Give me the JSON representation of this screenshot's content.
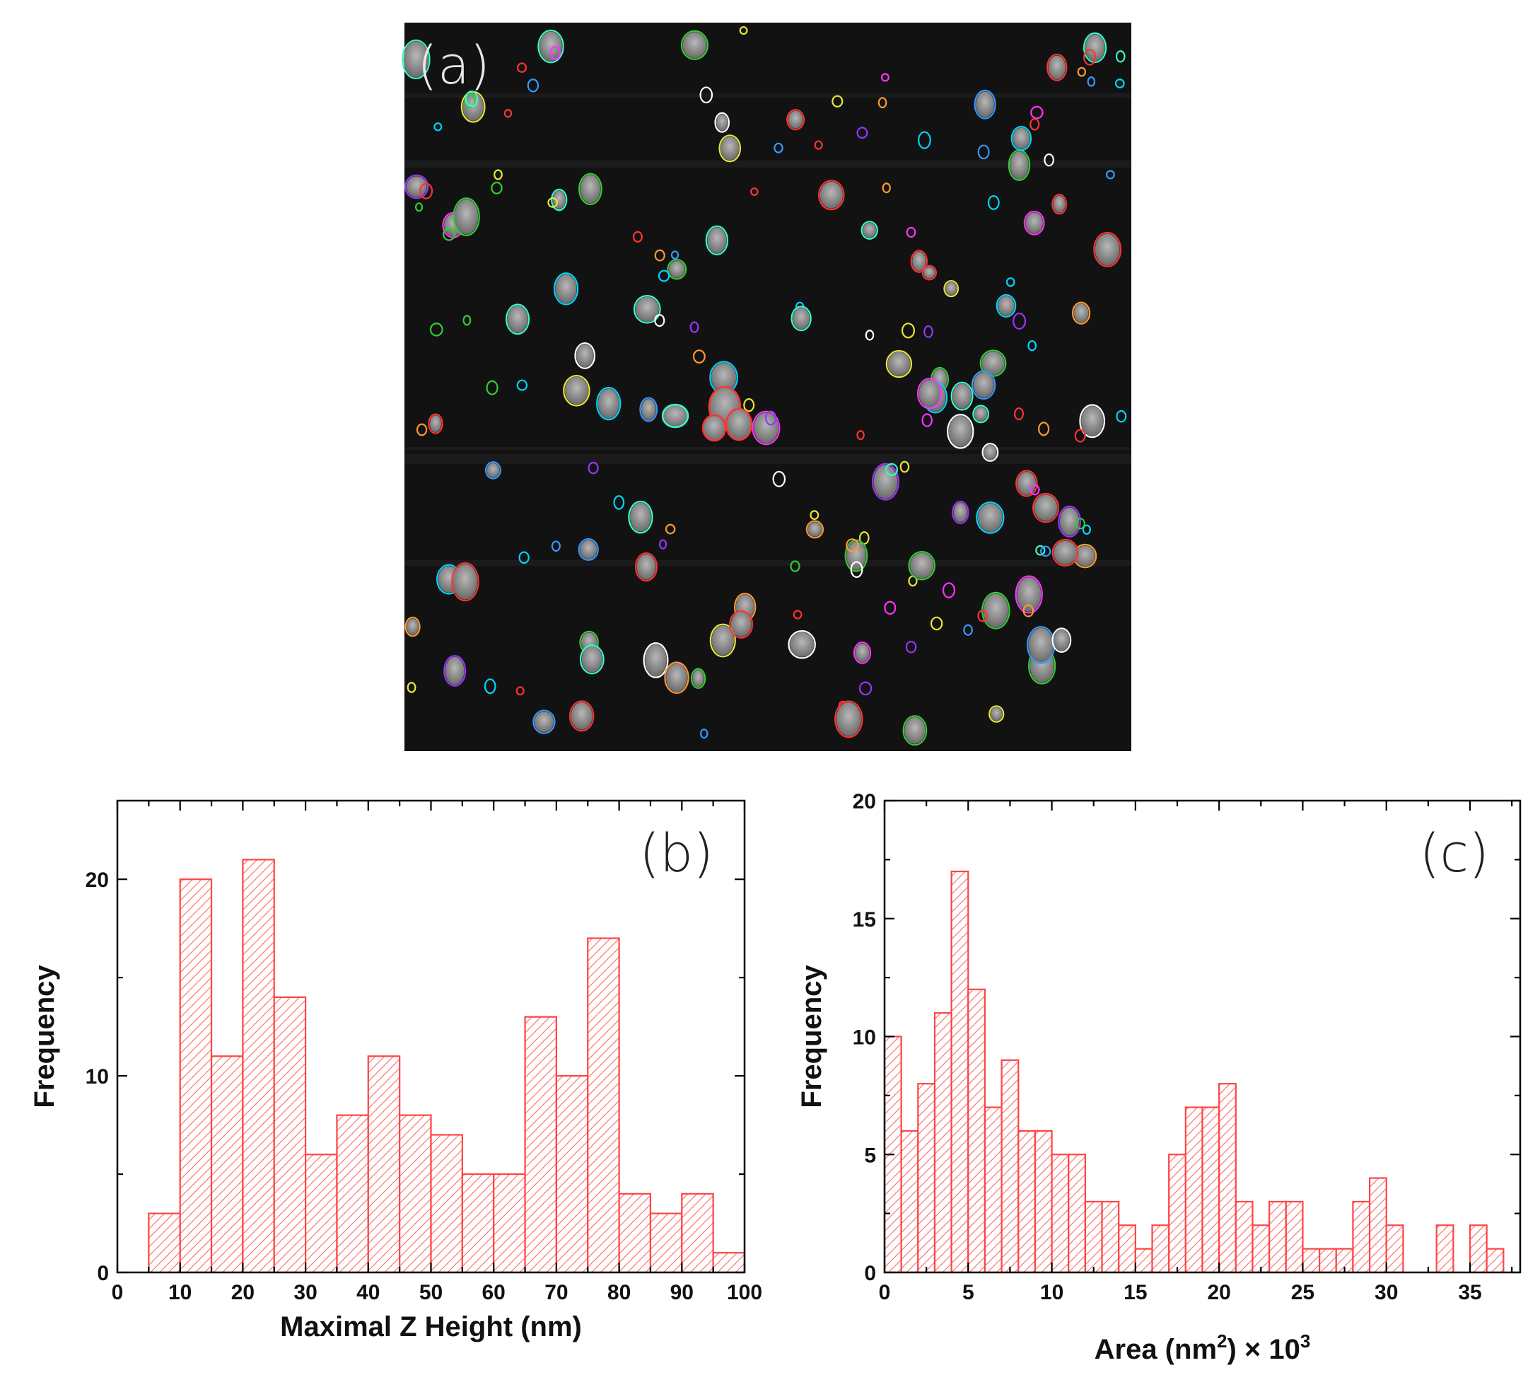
{
  "panel_a": {
    "label": "(a)",
    "colors": [
      "#00d4ff",
      "#ff33ff",
      "#33cc33",
      "#ff9933",
      "#3399ff",
      "#e6e633",
      "#ff3333",
      "#ffffff",
      "#33ffcc",
      "#9933ff"
    ]
  },
  "chart_data": [
    {
      "type": "bar",
      "panel": "(b)",
      "xlabel": "Maximal Z Height (nm)",
      "ylabel": "Frequency",
      "xlim": [
        0,
        100
      ],
      "ylim": [
        0,
        24
      ],
      "xticks": [
        0,
        10,
        20,
        30,
        40,
        50,
        60,
        70,
        80,
        90,
        100
      ],
      "yticks": [
        0,
        10,
        20
      ],
      "bin_width": 5,
      "bin_starts": [
        5,
        10,
        15,
        20,
        25,
        30,
        35,
        40,
        45,
        50,
        55,
        60,
        65,
        70,
        75,
        80,
        85,
        90,
        95
      ],
      "values": [
        3,
        20,
        11,
        21,
        14,
        6,
        8,
        11,
        8,
        7,
        5,
        5,
        13,
        10,
        17,
        4,
        3,
        4,
        1
      ],
      "color": "#ff4444"
    },
    {
      "type": "bar",
      "panel": "(c)",
      "xlabel": "Area (nm",
      "xlabel_sup": "2",
      "xlabel_tail": ") × 10",
      "xlabel_sup2": "3",
      "ylabel": "Frequency",
      "xlim": [
        0,
        38
      ],
      "ylim": [
        0,
        20
      ],
      "xticks": [
        0,
        5,
        10,
        15,
        20,
        25,
        30,
        35
      ],
      "yticks": [
        0,
        5,
        10,
        15,
        20
      ],
      "bin_width": 1,
      "bin_starts": [
        0,
        1,
        2,
        3,
        4,
        5,
        6,
        7,
        8,
        9,
        10,
        11,
        12,
        13,
        14,
        15,
        16,
        17,
        18,
        19,
        20,
        21,
        22,
        23,
        24,
        25,
        26,
        27,
        28,
        29,
        30,
        31,
        32,
        33,
        34,
        35,
        36
      ],
      "values": [
        10,
        6,
        8,
        11,
        17,
        12,
        7,
        9,
        6,
        6,
        5,
        5,
        3,
        3,
        2,
        1,
        2,
        5,
        7,
        7,
        8,
        3,
        2,
        3,
        3,
        1,
        1,
        1,
        3,
        4,
        2,
        0,
        0,
        2,
        0,
        2,
        1
      ],
      "color": "#ff4444"
    }
  ]
}
